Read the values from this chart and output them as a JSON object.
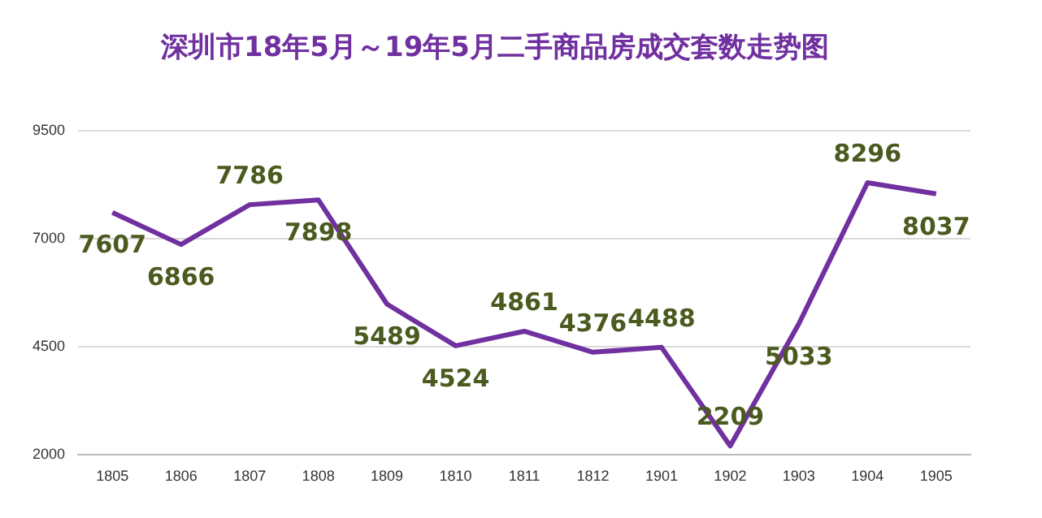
{
  "chart_data": {
    "type": "line",
    "title": "深圳市18年5月～19年5月二手商品房成交套数走势图",
    "categories": [
      "1805",
      "1806",
      "1807",
      "1808",
      "1809",
      "1810",
      "1811",
      "1812",
      "1901",
      "1902",
      "1903",
      "1904",
      "1905"
    ],
    "series": [
      {
        "color": "#7030a0",
        "values": [
          7607,
          6866,
          7786,
          7898,
          5489,
          4524,
          4861,
          4376,
          4488,
          2209,
          5033,
          8296,
          8037
        ]
      }
    ],
    "ylim": [
      2000,
      9500
    ],
    "yticks": [
      2000,
      4500,
      7000,
      9500
    ],
    "grid": "y",
    "data_labels": true,
    "marker": "none",
    "line_style": "solid",
    "legend": false
  }
}
